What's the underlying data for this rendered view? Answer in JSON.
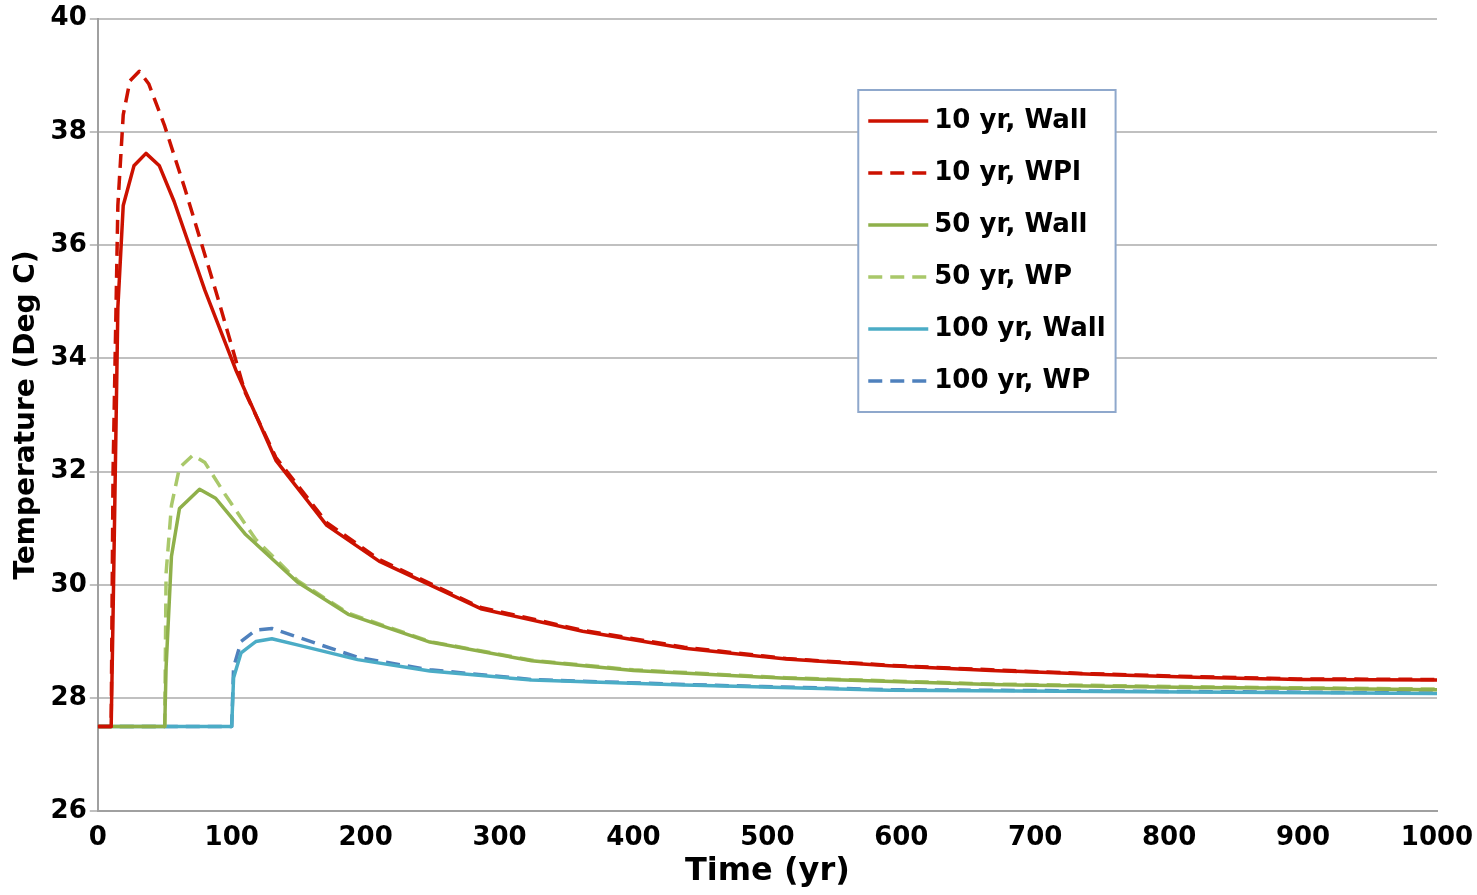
{
  "chart_data": {
    "type": "line",
    "xlabel": "Time (yr)",
    "ylabel": "Temperature (Deg C)",
    "xlim": [
      0,
      1000
    ],
    "xticks": [
      0,
      100,
      200,
      300,
      400,
      500,
      600,
      700,
      800,
      900,
      1000
    ],
    "ylim": [
      26,
      40
    ],
    "yticks": [
      26,
      28,
      30,
      32,
      34,
      36,
      38,
      40
    ],
    "grid": "y",
    "legend": "top right",
    "marker": "none",
    "series": [
      {
        "name": "10 yr, Wall",
        "color": "#cc1100",
        "line_style": "solid",
        "x": [
          0,
          10,
          11.4,
          15,
          19,
          27,
          36,
          46,
          57,
          80,
          103,
          133,
          171,
          210,
          286,
          362,
          438,
          514,
          591,
          667,
          743,
          819,
          896,
          1000
        ],
        "values": [
          27.5,
          27.5,
          29.45,
          34.9,
          36.7,
          37.4,
          37.62,
          37.4,
          36.77,
          35.2,
          33.8,
          32.2,
          31.05,
          30.42,
          29.58,
          29.18,
          28.88,
          28.69,
          28.57,
          28.49,
          28.42,
          28.37,
          28.33,
          28.32
        ]
      },
      {
        "name": "10 yr, WPl",
        "color": "#cc1100",
        "line_style": "dashed",
        "x": [
          0,
          10,
          11.4,
          15,
          19,
          24,
          31,
          38,
          50,
          65,
          88,
          110,
          133,
          171,
          210,
          286,
          362,
          438,
          514,
          591,
          667,
          743,
          819,
          896,
          1000
        ],
        "values": [
          27.5,
          27.5,
          31.98,
          36.7,
          38.3,
          38.9,
          39.07,
          38.85,
          38.1,
          37.0,
          35.2,
          33.4,
          32.25,
          31.1,
          30.45,
          29.6,
          29.2,
          28.9,
          28.7,
          28.58,
          28.5,
          28.43,
          28.38,
          28.34,
          28.33
        ]
      },
      {
        "name": "50 yr, Wall",
        "color": "#8fb04a",
        "line_style": "solid",
        "x": [
          0,
          50,
          51,
          55,
          61,
          76,
          88,
          110,
          149,
          187,
          248,
          324,
          400,
          514,
          667,
          819,
          1000
        ],
        "values": [
          27.5,
          27.5,
          28.54,
          30.5,
          31.35,
          31.69,
          31.53,
          30.9,
          30.05,
          29.48,
          28.99,
          28.66,
          28.49,
          28.35,
          28.24,
          28.19,
          28.15
        ]
      },
      {
        "name": "50 yr, WP",
        "color": "#a9c86a",
        "line_style": "dashed",
        "x": [
          0,
          50,
          51,
          55,
          61,
          71,
          80,
          95,
          118,
          149,
          187,
          248,
          324,
          400,
          514,
          667,
          819,
          1000
        ],
        "values": [
          27.5,
          27.5,
          30.2,
          31.4,
          32.07,
          32.29,
          32.16,
          31.6,
          30.8,
          30.08,
          29.5,
          29.0,
          28.67,
          28.5,
          28.36,
          28.25,
          28.2,
          28.16
        ]
      },
      {
        "name": "100 yr, Wall",
        "color": "#4bacc6",
        "line_style": "solid",
        "x": [
          0,
          100,
          101.4,
          107,
          118,
          130,
          149,
          194,
          248,
          324,
          438,
          591,
          1000
        ],
        "values": [
          27.5,
          27.5,
          28.36,
          28.8,
          29.0,
          29.05,
          28.94,
          28.68,
          28.48,
          28.32,
          28.23,
          28.14,
          28.08
        ]
      },
      {
        "name": "100 yr, WP",
        "color": "#4f81bd",
        "line_style": "dashed",
        "x": [
          0,
          100,
          101.4,
          107,
          118,
          130,
          149,
          194,
          248,
          324,
          438,
          591,
          1000
        ],
        "values": [
          27.5,
          27.5,
          28.54,
          29.0,
          29.2,
          29.23,
          29.08,
          28.72,
          28.5,
          28.33,
          28.24,
          28.15,
          28.09
        ]
      }
    ]
  }
}
